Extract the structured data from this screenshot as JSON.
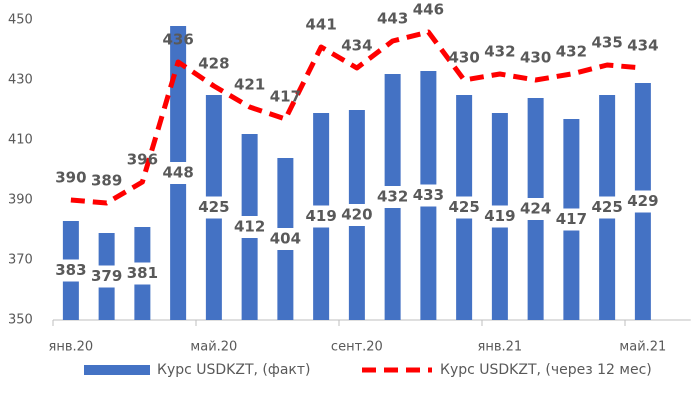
{
  "chart_data": {
    "type": "bar+line",
    "categories": [
      "янв.20",
      null,
      null,
      null,
      "май.20",
      null,
      null,
      null,
      "сент.20",
      null,
      null,
      null,
      "янв.21",
      null,
      null,
      null,
      "май.21"
    ],
    "series": [
      {
        "name": "Курс USDKZT, (факт)",
        "type": "bar",
        "color": "#4472c4",
        "values": [
          383,
          379,
          381,
          448,
          425,
          412,
          404,
          419,
          420,
          432,
          433,
          425,
          419,
          424,
          417,
          425,
          429
        ]
      },
      {
        "name": "Курс USDKZT, (через 12 мес)",
        "type": "line",
        "color": "#ff0000",
        "dashed": true,
        "values": [
          390,
          389,
          396,
          436,
          428,
          421,
          417,
          441,
          434,
          443,
          446,
          430,
          432,
          430,
          432,
          435,
          434
        ]
      }
    ],
    "ylim": [
      350,
      450
    ],
    "yticks": [
      350,
      370,
      390,
      410,
      430,
      450
    ],
    "legend": "bottom"
  }
}
